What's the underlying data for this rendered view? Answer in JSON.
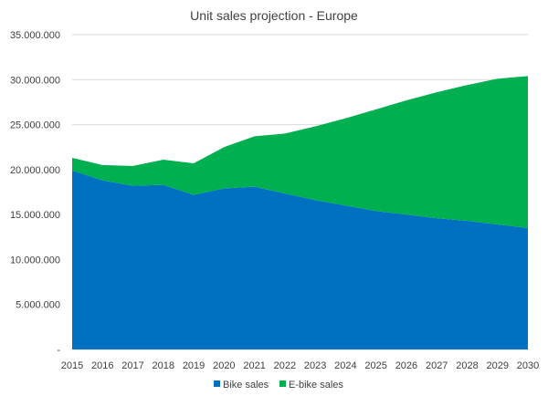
{
  "chart_data": {
    "type": "area",
    "stacked": true,
    "title": "Unit sales projection - Europe",
    "xlabel": "",
    "ylabel": "",
    "categories": [
      "2015",
      "2016",
      "2017",
      "2018",
      "2019",
      "2020",
      "2021",
      "2022",
      "2023",
      "2024",
      "2025",
      "2026",
      "2027",
      "2028",
      "2029",
      "2030"
    ],
    "series": [
      {
        "name": "Bike sales",
        "color": "#0070C0",
        "values": [
          19900000,
          18800000,
          18200000,
          18300000,
          17200000,
          17900000,
          18100000,
          17350000,
          16600000,
          16000000,
          15400000,
          15000000,
          14600000,
          14300000,
          13900000,
          13500000
        ]
      },
      {
        "name": "E-bike sales",
        "color": "#00B050",
        "values": [
          1400000,
          1700000,
          2200000,
          2800000,
          3500000,
          4600000,
          5600000,
          6650000,
          8200000,
          9700000,
          11300000,
          12700000,
          14000000,
          15100000,
          16200000,
          16900000
        ]
      }
    ],
    "ylim": [
      0,
      35000000
    ],
    "yticks": [
      "-",
      "5.000.000",
      "10.000.000",
      "15.000.000",
      "20.000.000",
      "25.000.000",
      "30.000.000",
      "35.000.000"
    ],
    "grid": true,
    "legend": "bottom"
  }
}
